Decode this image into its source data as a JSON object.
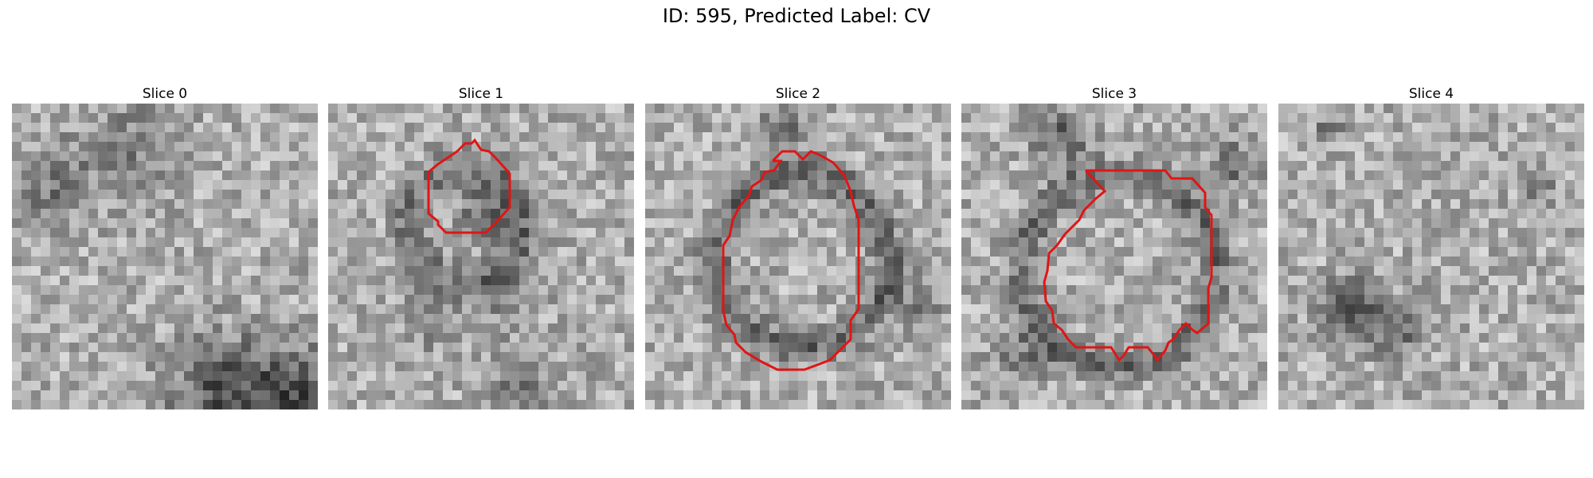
{
  "title": "ID: 595, Predicted Label: CV",
  "grid_size": 32,
  "outline_color": "#e01515",
  "panels": [
    {
      "label": "Slice 0",
      "has_outline": false
    },
    {
      "label": "Slice 1",
      "has_outline": true
    },
    {
      "label": "Slice 2",
      "has_outline": true
    },
    {
      "label": "Slice 3",
      "has_outline": true
    },
    {
      "label": "Slice 4",
      "has_outline": false
    }
  ]
}
